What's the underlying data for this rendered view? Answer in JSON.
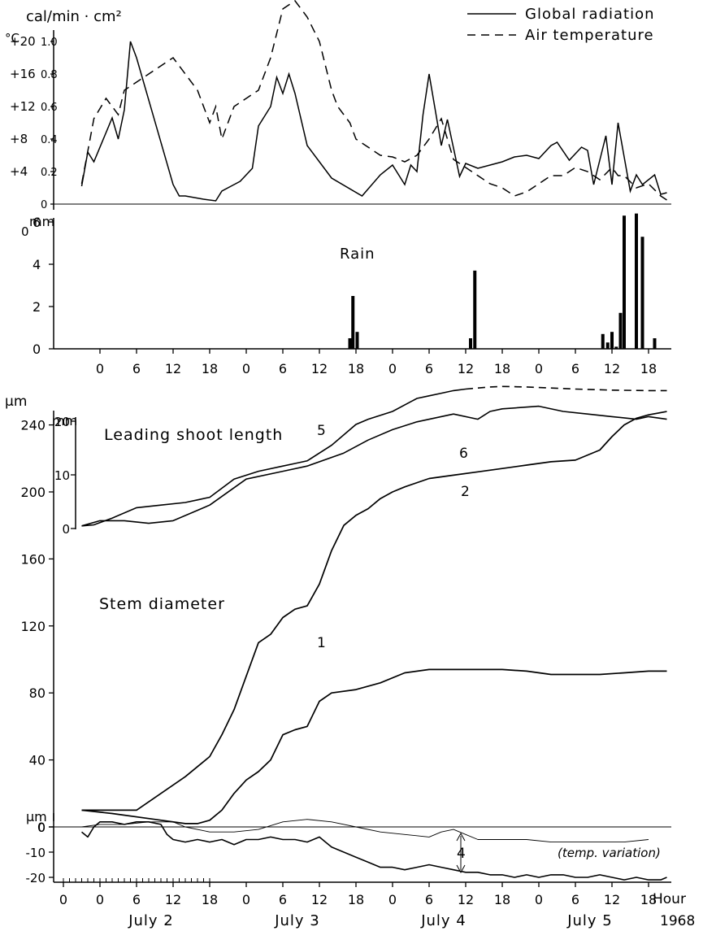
{
  "legend": {
    "global_radiation": "Global radiation",
    "air_temperature": "Air temperature"
  },
  "labels": {
    "rad_unit": "cal/min · cm²",
    "temp_unit": "°C",
    "rain_unit": "mm",
    "rain_title": "Rain",
    "um_top": "µm",
    "mm_shoot": "mm",
    "leading_shoot": "Leading shoot length",
    "stem_diameter": "Stem diameter",
    "um_bottom": "µm",
    "temp_variation": "(temp. variation)",
    "hour": "Hour",
    "year": "1968"
  },
  "days": [
    "July 2",
    "July 3",
    "July 4",
    "July 5"
  ],
  "chart_data": [
    {
      "type": "line",
      "title": "",
      "xlabel": "Hour",
      "x_unit": "hours from 0:00 July 2, 1968",
      "series": [
        {
          "name": "Global radiation",
          "y_axis": "cal/min · cm²",
          "style": "solid",
          "x": [
            3,
            4,
            5,
            8,
            9,
            10,
            11,
            12,
            18,
            19,
            20,
            23,
            25,
            26,
            28,
            29,
            31,
            32,
            34,
            35,
            36,
            37,
            38,
            40,
            42,
            44,
            49,
            52,
            54,
            56,
            57,
            58,
            59,
            60,
            62,
            63,
            65,
            66,
            68,
            70,
            72,
            74,
            76,
            78,
            80,
            81,
            83,
            85,
            86,
            87,
            89,
            90,
            91,
            93,
            94,
            95,
            97,
            98,
            99
          ],
          "y": [
            0.11,
            0.32,
            0.26,
            0.53,
            0.4,
            0.58,
            1.0,
            0.9,
            0.12,
            0.05,
            0.05,
            0.03,
            0.02,
            0.08,
            0.12,
            0.14,
            0.22,
            0.48,
            0.6,
            0.78,
            0.68,
            0.8,
            0.68,
            0.36,
            0.26,
            0.16,
            0.05,
            0.18,
            0.24,
            0.12,
            0.24,
            0.2,
            0.55,
            0.8,
            0.36,
            0.52,
            0.17,
            0.25,
            0.22,
            0.24,
            0.26,
            0.29,
            0.3,
            0.28,
            0.36,
            0.38,
            0.27,
            0.35,
            0.33,
            0.12,
            0.42,
            0.12,
            0.5,
            0.08,
            0.18,
            0.12,
            0.18,
            0.06,
            0.07
          ]
        },
        {
          "name": "Air temperature",
          "y_axis": "°C",
          "style": "dashed",
          "x": [
            3,
            5,
            7,
            9,
            10,
            12,
            14,
            16,
            18,
            20,
            22,
            24,
            25,
            26,
            28,
            30,
            32,
            34,
            36,
            38,
            40,
            42,
            44,
            45,
            46,
            47,
            48,
            50,
            52,
            54,
            56,
            58,
            60,
            62,
            64,
            66,
            68,
            70,
            72,
            74,
            76,
            78,
            80,
            82,
            84,
            86,
            88,
            90,
            91,
            92,
            94,
            96,
            98,
            99
          ],
          "y": [
            2.5,
            10.5,
            13.0,
            11.0,
            14.0,
            15.0,
            16.0,
            17.0,
            18.0,
            16.0,
            14.0,
            10.0,
            12.0,
            8.0,
            12.0,
            13.0,
            14.0,
            18.0,
            24.0,
            25.0,
            23.0,
            20.0,
            14.0,
            12.0,
            11.0,
            10.0,
            8.0,
            7.0,
            6.0,
            5.8,
            5.2,
            6.0,
            8.0,
            10.5,
            5.5,
            4.5,
            3.5,
            2.5,
            2.0,
            1.0,
            1.5,
            2.5,
            3.5,
            3.5,
            4.5,
            4.0,
            3.0,
            4.5,
            3.5,
            3.5,
            2.0,
            2.5,
            1.0,
            0.5
          ]
        }
      ],
      "y_axes": [
        {
          "label": "cal/min · cm²",
          "ylim": [
            0,
            1.0
          ],
          "ticks": [
            0,
            0.2,
            0.4,
            0.6,
            0.8,
            1.0
          ]
        },
        {
          "label": "°C",
          "ylim": [
            0,
            25
          ],
          "ticks": [
            4,
            8,
            12,
            16,
            20
          ]
        }
      ],
      "xlim": [
        0,
        100
      ],
      "legend_position": "top-right"
    },
    {
      "type": "bar",
      "title": "Rain",
      "ylabel": "mm",
      "ylim": [
        0,
        6
      ],
      "yticks": [
        0,
        2,
        4,
        6
      ],
      "x_unit": "hours from 0:00 July 2, 1968",
      "x": [
        47.0,
        47.5,
        48.2,
        66.8,
        67.5,
        88.5,
        89.3,
        90.0,
        90.7,
        91.4,
        92.0,
        94.0,
        95.0,
        97.0
      ],
      "values": [
        0.5,
        2.5,
        0.8,
        0.5,
        3.7,
        0.7,
        0.3,
        0.8,
        0.1,
        1.7,
        6.3,
        6.4,
        5.3,
        0.5
      ]
    },
    {
      "type": "line",
      "title": "",
      "x_unit": "hours from 0:00 July 2, 1968",
      "y_axes": [
        {
          "label": "µm",
          "ylim": [
            0,
            240
          ],
          "ticks": [
            0,
            40,
            80,
            120,
            160,
            200,
            240
          ]
        },
        {
          "label": "mm",
          "ylim": [
            0,
            25
          ],
          "ticks": [
            0,
            10,
            20
          ]
        }
      ],
      "series": [
        {
          "name": "5",
          "group": "Leading shoot length",
          "style": "solid then dashed",
          "x": [
            3,
            5,
            8,
            12,
            16,
            20,
            22,
            24,
            28,
            32,
            36,
            38,
            40,
            44,
            48,
            50,
            54,
            58,
            60,
            62,
            64,
            66,
            68,
            70,
            72,
            76,
            80,
            84,
            90,
            96,
            99
          ],
          "y": [
            0.5,
            0.7,
            2.0,
            4.0,
            4.5,
            5.0,
            5.5,
            6.0,
            9.5,
            11.0,
            12.0,
            12.5,
            13.0,
            16.0,
            20.0,
            21.0,
            22.5,
            25.0,
            25.5,
            26.0,
            26.5,
            26.8,
            27.0,
            27.2,
            27.3,
            27.2,
            27.0,
            26.8,
            26.6,
            26.5,
            26.5
          ]
        },
        {
          "name": "6",
          "group": "Leading shoot length",
          "style": "solid",
          "x": [
            3,
            6,
            10,
            14,
            18,
            22,
            24,
            30,
            36,
            40,
            46,
            50,
            54,
            58,
            64,
            68,
            70,
            72,
            78,
            82,
            86,
            90,
            94,
            96,
            99
          ],
          "y": [
            0.5,
            1.5,
            1.5,
            1.0,
            1.5,
            3.5,
            4.5,
            9.5,
            11.0,
            12.0,
            14.5,
            17.0,
            19.0,
            20.5,
            22.0,
            21.0,
            22.5,
            23.0,
            23.5,
            22.5,
            22.0,
            21.5,
            21.0,
            21.5,
            21.0
          ]
        },
        {
          "name": "2",
          "group": "Stem diameter",
          "style": "solid",
          "x": [
            3,
            12,
            16,
            20,
            24,
            26,
            28,
            30,
            32,
            34,
            36,
            38,
            40,
            42,
            44,
            46,
            48,
            50,
            52,
            54,
            56,
            60,
            64,
            68,
            72,
            76,
            80,
            84,
            88,
            90,
            92,
            94,
            96,
            99
          ],
          "y": [
            10,
            10,
            20,
            30,
            42,
            55,
            70,
            90,
            110,
            115,
            125,
            130,
            132,
            145,
            165,
            180,
            186,
            190,
            196,
            200,
            203,
            208,
            210,
            212,
            214,
            216,
            218,
            219,
            225,
            233,
            240,
            244,
            246,
            248
          ]
        },
        {
          "name": "1",
          "group": "Stem diameter",
          "style": "solid",
          "x": [
            3,
            8,
            14,
            20,
            22,
            24,
            26,
            28,
            30,
            32,
            34,
            36,
            38,
            40,
            42,
            44,
            48,
            52,
            56,
            60,
            64,
            68,
            72,
            76,
            80,
            84,
            88,
            92,
            96,
            99
          ],
          "y": [
            10,
            8,
            5,
            2,
            2,
            4,
            10,
            20,
            28,
            33,
            40,
            55,
            58,
            60,
            75,
            80,
            82,
            86,
            92,
            94,
            94,
            94,
            94,
            93,
            91,
            91,
            91,
            92,
            93,
            93
          ]
        },
        {
          "name": "4",
          "group": "Stem diameter (bottom, µm)",
          "style": "solid jagged",
          "x": [
            3,
            4,
            5,
            6,
            8,
            10,
            12,
            14,
            16,
            17,
            18,
            20,
            22,
            24,
            26,
            28,
            30,
            32,
            34,
            36,
            38,
            40,
            42,
            43,
            44,
            46,
            48,
            50,
            52,
            54,
            56,
            58,
            60,
            62,
            64,
            66,
            68,
            70,
            72,
            74,
            76,
            78,
            80,
            82,
            84,
            86,
            88,
            90,
            92,
            94,
            96,
            98,
            99
          ],
          "y": [
            -2,
            -4,
            0,
            2,
            2,
            1,
            2,
            2,
            1,
            -3,
            -5,
            -6,
            -5,
            -6,
            -5,
            -7,
            -5,
            -5,
            -4,
            -5,
            -5,
            -6,
            -4,
            -6,
            -8,
            -10,
            -12,
            -14,
            -16,
            -16,
            -17,
            -16,
            -15,
            -16,
            -17,
            -18,
            -18,
            -19,
            -19,
            -20,
            -19,
            -20,
            -19,
            -19,
            -20,
            -20,
            -19,
            -20,
            -21,
            -20,
            -21,
            -21,
            -20
          ]
        },
        {
          "name": "(temp. variation)",
          "group": "Stem diameter (bottom, µm)",
          "style": "thin",
          "x": [
            3,
            6,
            10,
            14,
            18,
            20,
            24,
            28,
            32,
            36,
            40,
            44,
            48,
            52,
            56,
            60,
            62,
            64,
            66,
            68,
            72,
            76,
            80,
            84,
            88,
            92,
            96
          ],
          "y": [
            0,
            1,
            1,
            2,
            2,
            0,
            -2,
            -2,
            -1,
            2,
            3,
            2,
            0,
            -2,
            -3,
            -4,
            -2,
            -1,
            -3,
            -5,
            -5,
            -5,
            -6,
            -6,
            -6,
            -6,
            -5
          ]
        }
      ],
      "bottom_axis": {
        "label": "µm",
        "ylim": [
          -22,
          3
        ],
        "ticks": [
          0,
          -10,
          -20
        ]
      },
      "x_tick_labels": [
        "0",
        "6",
        "12",
        "18",
        "0",
        "6",
        "12",
        "18",
        "0",
        "6",
        "12",
        "18",
        "0",
        "6",
        "12",
        "18"
      ],
      "xlim": [
        0,
        100
      ]
    }
  ]
}
